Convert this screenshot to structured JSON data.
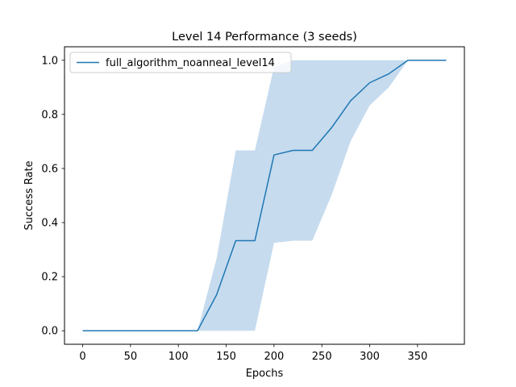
{
  "chart_data": {
    "type": "line",
    "title": "Level 14 Performance (3 seeds)",
    "xlabel": "Epochs",
    "ylabel": "Success Rate",
    "xlim": [
      -19,
      399
    ],
    "ylim": [
      -0.05,
      1.05
    ],
    "x_ticks": [
      0,
      50,
      100,
      150,
      200,
      250,
      300,
      350
    ],
    "y_ticks": [
      0.0,
      0.2,
      0.4,
      0.6,
      0.8,
      1.0
    ],
    "y_tick_labels": [
      "0.0",
      "0.2",
      "0.4",
      "0.6",
      "0.8",
      "1.0"
    ],
    "grid": false,
    "legend_position": "upper-left",
    "series": [
      {
        "name": "full_algorithm_noanneal_level14",
        "color": "#1f77b4",
        "band_color": "#c6dbee",
        "x": [
          0,
          20,
          40,
          60,
          80,
          100,
          120,
          140,
          160,
          180,
          200,
          220,
          240,
          260,
          280,
          300,
          320,
          340,
          360,
          380
        ],
        "values": [
          0,
          0,
          0,
          0,
          0,
          0,
          0,
          0.133,
          0.333,
          0.333,
          0.65,
          0.667,
          0.667,
          0.75,
          0.85,
          0.917,
          0.95,
          1.0,
          1.0,
          1.0
        ],
        "lower": [
          0,
          0,
          0,
          0,
          0,
          0,
          0,
          0,
          0,
          0,
          0.325,
          0.333,
          0.333,
          0.5,
          0.7,
          0.833,
          0.9,
          1.0,
          1.0,
          1.0
        ],
        "upper": [
          0,
          0,
          0,
          0,
          0,
          0,
          0,
          0.267,
          0.667,
          0.667,
          0.975,
          1.0,
          1.0,
          1.0,
          1.0,
          1.0,
          1.0,
          1.0,
          1.0,
          1.0
        ]
      }
    ]
  }
}
